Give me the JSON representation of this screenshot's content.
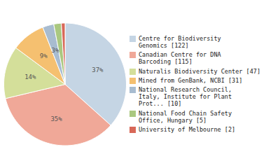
{
  "chart_data": {
    "type": "pie",
    "categories": [
      "Centre for Biodiversity\nGenomics [122]",
      "Canadian Centre for DNA\nBarcoding [115]",
      "Naturalis Biodiversity Center [47]",
      "Mined from GenBank, NCBI [31]",
      "National Research Council,\nItaly, Institute for Plant\nProt... [10]",
      "National Food Chain Safety\nOffice, Hungary [5]",
      "University of Melbourne [2]"
    ],
    "values": [
      37,
      35,
      14,
      9,
      3,
      2,
      1
    ],
    "value_labels": [
      "37%",
      "35%",
      "14%",
      "9%",
      "3%",
      null,
      null
    ],
    "data_labels": true,
    "colors": [
      "#c5d5e4",
      "#f0a898",
      "#d4df9a",
      "#f5c070",
      "#a8bcd0",
      "#aac880",
      "#d86858"
    ],
    "legend": "right"
  }
}
